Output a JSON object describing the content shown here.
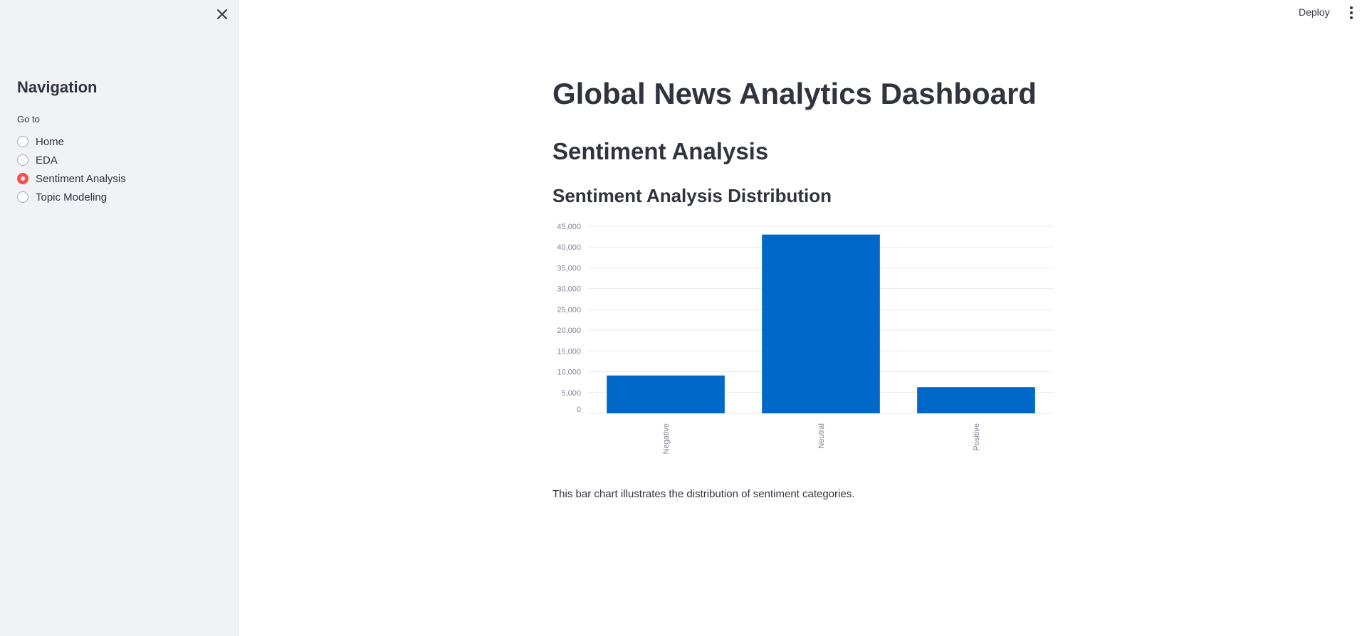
{
  "sidebar": {
    "close_icon": "close-icon",
    "title": "Navigation",
    "radio_label": "Go to",
    "items": [
      {
        "label": "Home",
        "selected": false
      },
      {
        "label": "EDA",
        "selected": false
      },
      {
        "label": "Sentiment Analysis",
        "selected": true
      },
      {
        "label": "Topic Modeling",
        "selected": false
      }
    ]
  },
  "header": {
    "deploy_label": "Deploy",
    "menu_icon": "kebab-menu-icon"
  },
  "main": {
    "title": "Global News Analytics Dashboard",
    "section_title": "Sentiment Analysis",
    "subheader": "Sentiment Analysis Distribution",
    "caption": "This bar chart illustrates the distribution of sentiment categories."
  },
  "colors": {
    "accent": "#ff4b4b",
    "bar": "#0068c9",
    "sidebar_bg": "#f0f2f6",
    "text": "#31333f"
  },
  "chart_data": {
    "type": "bar",
    "categories": [
      "Negative",
      "Neutral",
      "Positive"
    ],
    "values": [
      9100,
      43000,
      6300
    ],
    "ylim": [
      0,
      45000
    ],
    "yticks": [
      "0",
      "5,000",
      "10,000",
      "15,000",
      "20,000",
      "25,000",
      "30,000",
      "35,000",
      "40,000",
      "45,000"
    ],
    "ytick_values": [
      0,
      5000,
      10000,
      15000,
      20000,
      25000,
      30000,
      35000,
      40000,
      45000
    ],
    "grid": true,
    "color": "#0068c9"
  }
}
